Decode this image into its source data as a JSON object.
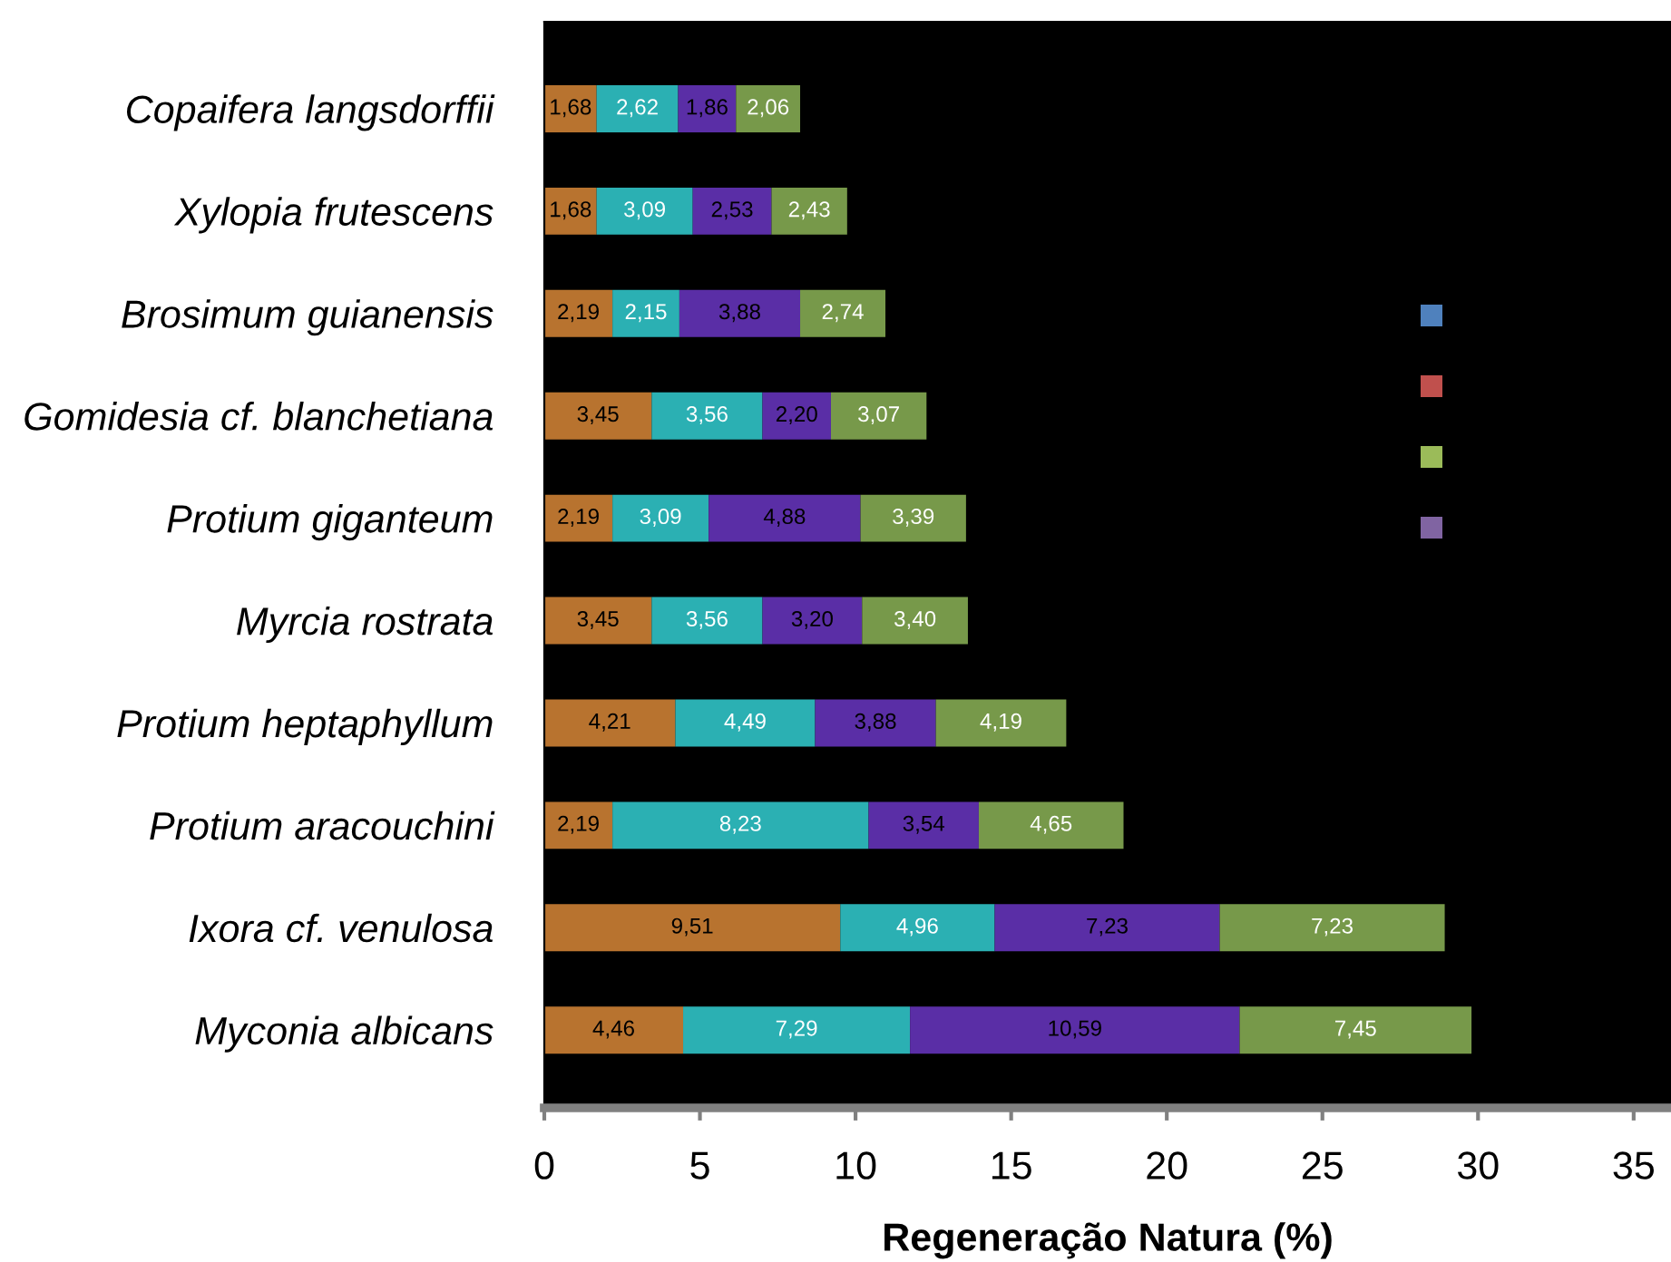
{
  "chart_data": {
    "type": "bar",
    "orientation": "horizontal",
    "stacked": true,
    "xlabel": "Regeneração Natura (%)",
    "categories": [
      "Copaifera langsdorffii",
      "Xylopia frutescens",
      "Brosimum guianensis",
      "Gomidesia cf. blanchetiana",
      "Protium giganteum",
      "Myrcia rostrata",
      "Protium heptaphyllum",
      "Protium aracouchini",
      "Ixora cf. venulosa",
      "Myconia albicans"
    ],
    "series": [
      {
        "color": "#b8732f",
        "values": [
          1.68,
          1.68,
          2.19,
          3.45,
          2.19,
          3.45,
          4.21,
          2.19,
          9.51,
          4.46
        ],
        "value_labels": [
          "1,68",
          "1,68",
          "2,19",
          "3,45",
          "2,19",
          "3,45",
          "4,21",
          "2,19",
          "9,51",
          "4,46"
        ]
      },
      {
        "color": "#2bb0b3",
        "values": [
          2.62,
          3.09,
          2.15,
          3.56,
          3.09,
          3.56,
          4.49,
          8.23,
          4.96,
          7.29
        ],
        "value_labels": [
          "2,62",
          "3,09",
          "2,15",
          "3,56",
          "3,09",
          "3,56",
          "4,49",
          "8,23",
          "4,96",
          "7,29"
        ]
      },
      {
        "color": "#5a2ea6",
        "values": [
          1.86,
          2.53,
          3.88,
          2.2,
          4.88,
          3.2,
          3.88,
          3.54,
          7.23,
          10.59
        ],
        "value_labels": [
          "1,86",
          "2,53",
          "3,88",
          "2,20",
          "4,88",
          "3,20",
          "3,88",
          "3,54",
          "7,23",
          "10,59"
        ]
      },
      {
        "color": "#77994a",
        "values": [
          2.06,
          2.43,
          2.74,
          3.07,
          3.39,
          3.4,
          4.19,
          4.65,
          7.23,
          7.45
        ],
        "value_labels": [
          "2,06",
          "2,43",
          "2,74",
          "3,07",
          "3,39",
          "3,40",
          "4,19",
          "4,65",
          "7,23",
          "7,45"
        ]
      }
    ],
    "xlim": [
      0,
      36.2
    ],
    "xticks": [
      0,
      5,
      10,
      15,
      20,
      25,
      30,
      35
    ]
  }
}
